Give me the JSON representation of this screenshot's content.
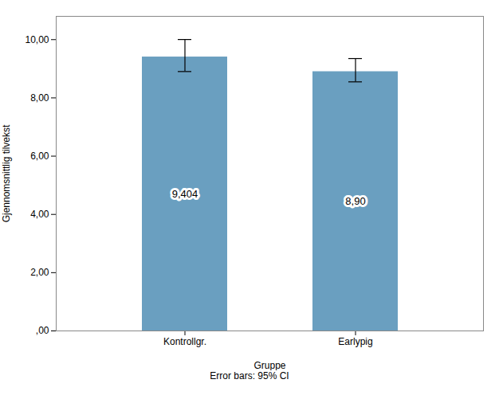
{
  "chart_data": {
    "type": "bar",
    "categories": [
      "Kontrollgr.",
      "Earlypig"
    ],
    "values": [
      9.404,
      8.9
    ],
    "value_labels": [
      "9,404",
      "8,90"
    ],
    "data_labels": true,
    "error_upper": [
      0.6,
      0.45
    ],
    "error_lower": [
      0.5,
      0.35
    ],
    "color": "#6A9FC0",
    "xlabel": "Gruppe",
    "ylabel": "Gjennomsnittlig tilvekst",
    "caption": "Error bars: 95% CI",
    "ylim": [
      0,
      10.8
    ],
    "yticks": [
      {
        "value": 0.0,
        "label": ",00"
      },
      {
        "value": 2.0,
        "label": "2,00"
      },
      {
        "value": 4.0,
        "label": "4,00"
      },
      {
        "value": 6.0,
        "label": "6,00"
      },
      {
        "value": 8.0,
        "label": "8,00"
      },
      {
        "value": 10.0,
        "label": "10,00"
      }
    ],
    "grid": false
  }
}
